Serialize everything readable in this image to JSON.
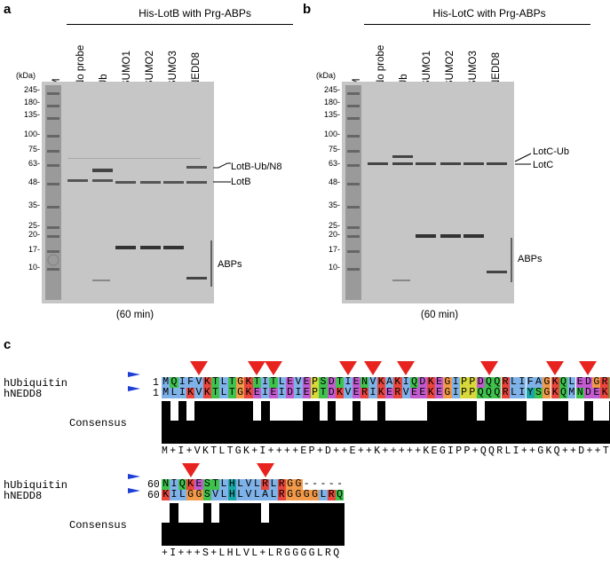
{
  "panels": [
    {
      "letter": "a",
      "title": "His-LotB with Prg-ABPs",
      "lanes": [
        "M",
        "No probe",
        "Ub",
        "SUMO1",
        "SUMO2",
        "SUMO3",
        "NEDD8"
      ],
      "kda_label": "(kDa)",
      "markers": [
        "245-",
        "180-",
        "135-",
        "100-",
        "75-",
        "63-",
        "48-",
        "35-",
        "25-",
        "20-",
        "17-",
        "10-"
      ],
      "annotations": [
        "LotB-Ub/N8",
        "LotB",
        "ABPs"
      ],
      "time": "(60 min)"
    },
    {
      "letter": "b",
      "title": "His-LotC with Prg-ABPs",
      "lanes": [
        "M",
        "No probe",
        "Ub",
        "SUMO1",
        "SUMO2",
        "SUMO3",
        "NEDD8"
      ],
      "kda_label": "(kDa)",
      "markers": [
        "245-",
        "180-",
        "135-",
        "100-",
        "75-",
        "63-",
        "48-",
        "35-",
        "25-",
        "20-",
        "17-",
        "10-"
      ],
      "annotations": [
        "LotC-Ub",
        "LotC",
        "ABPs"
      ],
      "time": "(60 min)"
    }
  ],
  "alignment": {
    "letter": "c",
    "blocks": [
      {
        "seq1_name": "hUbiquitin",
        "seq1_start": "1",
        "seq1": "MQIFVKTLTGKTITLEVEPSDTIENVKAKIQDKEGIPPDQQRLIFAGKQLEDGRTLSDY",
        "seq2_name": "hNEDD8",
        "seq2_start": "1",
        "seq2": "MLIKVKTLTGKEIEIDIEPTDKVERIKERVEEKEGIPPQQQRLIYSGKQMNDEKTAADY",
        "consensus_label": "Consensus",
        "consensus": "M+I+VKTLTGK+I++++EP+D++E++K+++++KEGIPP+QQRLI++GKQ++D++T++DY",
        "triangles": [
          4,
          11,
          13,
          22,
          25,
          29,
          39,
          47,
          51,
          57
        ]
      },
      {
        "seq1_name": "hUbiquitin",
        "seq1_start": "60",
        "seq1": "NIQKESTLHLVLRLRGG-----",
        "seq2_name": "hNEDD8",
        "seq2_start": "60",
        "seq2": "KILGGSVLHLVLALRGGGGLRQ",
        "consensus_label": "Consensus",
        "consensus": "+I+++S+LHLVL+LRGGGGLRQ",
        "triangles": [
          3,
          12
        ]
      }
    ]
  },
  "colors": {
    "triangle": "#e8231f",
    "flag": "#1d3fd6",
    "gel_bg": "#c6c6c6"
  }
}
